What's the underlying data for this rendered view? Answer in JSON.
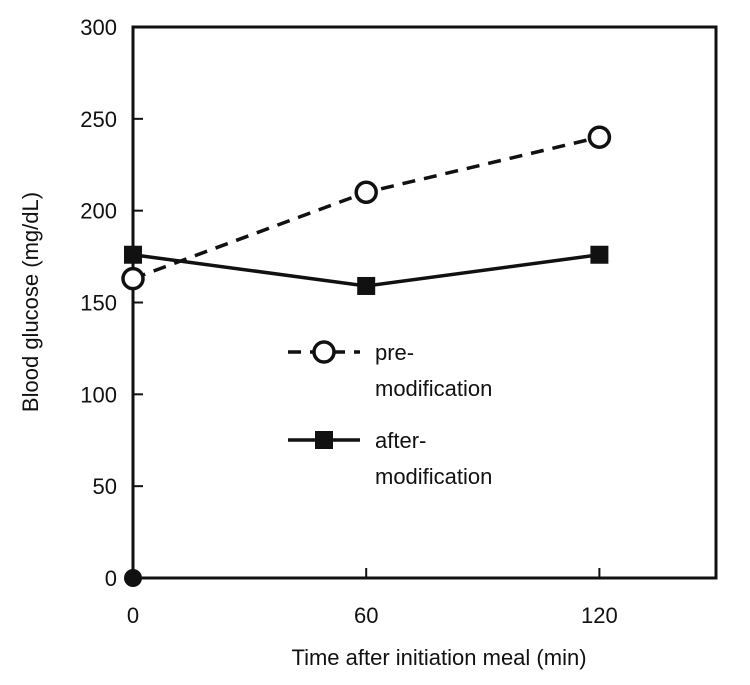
{
  "chart_data": {
    "type": "line",
    "title": "",
    "xlabel": "Time after initiation meal (min)",
    "ylabel": "Blood glucose (mg/dL)",
    "xlim": [
      0,
      150
    ],
    "ylim": [
      0,
      300
    ],
    "x_ticks": [
      "0",
      "60",
      "120"
    ],
    "x_tick_values": [
      0,
      60,
      120
    ],
    "y_ticks": [
      "0",
      "50",
      "100",
      "150",
      "200",
      "250",
      "300"
    ],
    "y_tick_values": [
      0,
      50,
      100,
      150,
      200,
      250,
      300
    ],
    "grid": false,
    "legend_position": "center",
    "origin_marker_value": [
      0,
      0
    ],
    "series": [
      {
        "name": "pre-modification",
        "legend_lines": [
          "pre-",
          "modification"
        ],
        "line_style": "dashed",
        "marker": "open-circle",
        "color": "#111111",
        "x": [
          0,
          60,
          120
        ],
        "values": [
          163,
          210,
          240
        ]
      },
      {
        "name": "after-modification",
        "legend_lines": [
          "after-",
          "modification"
        ],
        "line_style": "solid",
        "marker": "filled-square",
        "color": "#111111",
        "x": [
          0,
          60,
          120
        ],
        "values": [
          176,
          159,
          176
        ]
      }
    ]
  }
}
